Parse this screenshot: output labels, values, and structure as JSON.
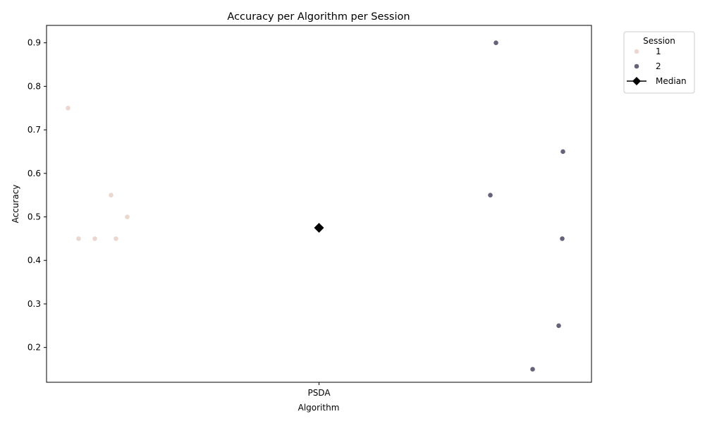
{
  "chart_data": {
    "type": "scatter",
    "title": "Accuracy per Algorithm per Session",
    "xlabel": "Algorithm",
    "ylabel": "Accuracy",
    "categories": [
      "PSDA"
    ],
    "ylim": [
      0.12,
      0.94
    ],
    "yticks": [
      "0.2",
      "0.3",
      "0.4",
      "0.5",
      "0.6",
      "0.7",
      "0.8",
      "0.9"
    ],
    "grid": false,
    "legend": {
      "title": "Session",
      "placement": "outside-top-right",
      "entries": [
        {
          "label": "1",
          "color": "#ebd7cf",
          "marker": "circle"
        },
        {
          "label": "2",
          "color": "#65637a",
          "marker": "circle"
        },
        {
          "label": "Median",
          "color": "#000000",
          "marker": "diamond-line"
        }
      ]
    },
    "series": [
      {
        "name": "1",
        "color": "#ebd7cf",
        "points": [
          {
            "category": "PSDA",
            "y": 0.75
          },
          {
            "category": "PSDA",
            "y": 0.45
          },
          {
            "category": "PSDA",
            "y": 0.45
          },
          {
            "category": "PSDA",
            "y": 0.55
          },
          {
            "category": "PSDA",
            "y": 0.45
          },
          {
            "category": "PSDA",
            "y": 0.5
          }
        ]
      },
      {
        "name": "2",
        "color": "#65637a",
        "points": [
          {
            "category": "PSDA",
            "y": 0.9
          },
          {
            "category": "PSDA",
            "y": 0.55
          },
          {
            "category": "PSDA",
            "y": 0.15
          },
          {
            "category": "PSDA",
            "y": 0.25
          },
          {
            "category": "PSDA",
            "y": 0.65
          },
          {
            "category": "PSDA",
            "y": 0.45
          }
        ]
      }
    ],
    "median": {
      "label": "Median",
      "category": "PSDA",
      "y": 0.475,
      "color": "#000000"
    }
  }
}
